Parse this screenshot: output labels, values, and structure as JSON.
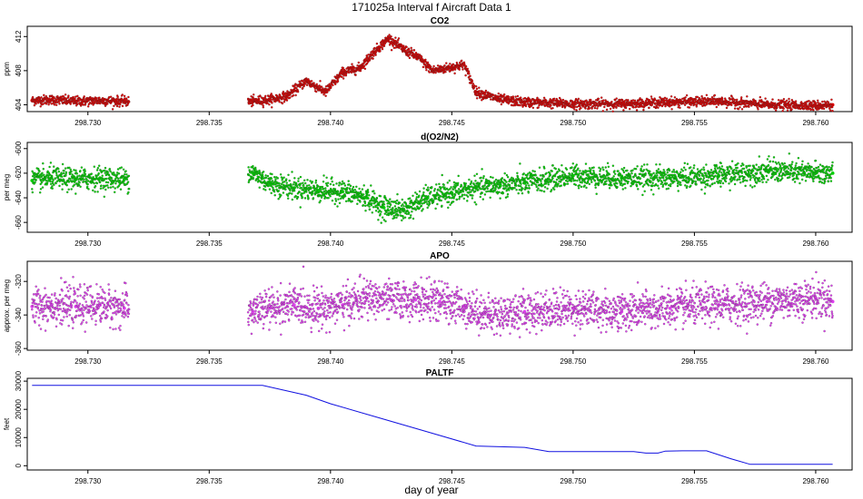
{
  "figure": {
    "title": "171025a   Interval f Aircraft Data 1",
    "xlabel": "day of year"
  },
  "colors": {
    "co2": "#e00000",
    "o2n2": "#00d000",
    "apo": "#e040f0",
    "paltf": "#1010e0",
    "axis": "#000000"
  },
  "chart_data": [
    {
      "type": "scatter",
      "title": "CO2",
      "ylabel": "ppm",
      "xlim": [
        298.7275,
        298.7615
      ],
      "ylim": [
        403.2,
        413.2
      ],
      "xticks": [
        298.73,
        298.735,
        298.74,
        298.745,
        298.75,
        298.755,
        298.76
      ],
      "xtick_labels": [
        "298.730",
        "298.735",
        "298.740",
        "298.745",
        "298.750",
        "298.755",
        "298.760"
      ],
      "yticks": [
        404,
        408,
        412
      ],
      "ytick_labels": [
        "404",
        "408",
        "412"
      ],
      "series": [
        {
          "color": "co2",
          "x": [
            298.7277,
            298.7285,
            298.7295,
            298.7305,
            298.7315,
            298.7368,
            298.7375,
            298.7382,
            298.739,
            298.7398,
            298.7405,
            298.7412,
            298.7418,
            298.7424,
            298.743,
            298.7436,
            298.7442,
            298.745,
            298.7455,
            298.746,
            298.747,
            298.748,
            298.75,
            298.752,
            298.754,
            298.756,
            298.758,
            298.76,
            298.7607
          ],
          "y": [
            404.5,
            404.6,
            404.4,
            404.5,
            404.4,
            404.4,
            404.6,
            405.0,
            406.8,
            405.5,
            407.8,
            408.3,
            410.2,
            411.8,
            410.5,
            409.6,
            408.0,
            408.4,
            408.7,
            405.5,
            404.6,
            404.3,
            404.1,
            404.1,
            404.3,
            404.4,
            404.0,
            403.9,
            404.0
          ]
        }
      ]
    },
    {
      "type": "scatter",
      "title": "d(O2/N2)",
      "ylabel": "per meg",
      "xlim": [
        298.7275,
        298.7615
      ],
      "ylim": [
        -668,
        -595
      ],
      "xticks": [
        298.73,
        298.735,
        298.74,
        298.745,
        298.75,
        298.755,
        298.76
      ],
      "xtick_labels": [
        "298.730",
        "298.735",
        "298.740",
        "298.745",
        "298.750",
        "298.755",
        "298.760"
      ],
      "yticks": [
        -600,
        -620,
        -640,
        -660
      ],
      "ytick_labels": [
        "-600",
        "-620",
        "-640",
        "-660"
      ],
      "series": [
        {
          "color": "o2n2",
          "x": [
            298.7277,
            298.7285,
            298.7295,
            298.7305,
            298.7315,
            298.7368,
            298.7375,
            298.7385,
            298.7395,
            298.7405,
            298.7415,
            298.7422,
            298.743,
            298.744,
            298.745,
            298.746,
            298.747,
            298.748,
            298.75,
            298.752,
            298.754,
            298.756,
            298.758,
            298.76,
            298.7607
          ],
          "y": [
            -626,
            -624,
            -625,
            -624,
            -625,
            -620,
            -628,
            -632,
            -634,
            -635,
            -640,
            -648,
            -650,
            -640,
            -636,
            -632,
            -630,
            -628,
            -622,
            -624,
            -624,
            -622,
            -618,
            -620,
            -620
          ]
        }
      ]
    },
    {
      "type": "scatter",
      "title": "APO",
      "ylabel": "approx. per meg",
      "xlim": [
        298.7275,
        298.7615
      ],
      "ylim": [
        -361,
        -308
      ],
      "xticks": [
        298.73,
        298.735,
        298.74,
        298.745,
        298.75,
        298.755,
        298.76
      ],
      "xtick_labels": [
        "298.730",
        "298.735",
        "298.740",
        "298.745",
        "298.750",
        "298.755",
        "298.760"
      ],
      "yticks": [
        -320,
        -340,
        -360
      ],
      "ytick_labels": [
        "-320",
        "-340",
        "-360"
      ],
      "series": [
        {
          "color": "apo",
          "x": [
            298.7277,
            298.7285,
            298.7295,
            298.7305,
            298.7315,
            298.7368,
            298.7375,
            298.7385,
            298.7395,
            298.7405,
            298.7415,
            298.7425,
            298.7435,
            298.7445,
            298.7455,
            298.7465,
            298.748,
            298.75,
            298.752,
            298.754,
            298.756,
            298.758,
            298.76,
            298.7607
          ],
          "y": [
            -335,
            -334,
            -335,
            -334,
            -336,
            -338,
            -336,
            -334,
            -336,
            -334,
            -330,
            -331,
            -331,
            -332,
            -335,
            -340,
            -338,
            -336,
            -338,
            -336,
            -334,
            -332,
            -330,
            -332
          ]
        }
      ]
    },
    {
      "type": "line",
      "title": "PALTF",
      "ylabel": "feet",
      "xlim": [
        298.7275,
        298.7615
      ],
      "ylim": [
        -1500,
        31000
      ],
      "xticks": [
        298.73,
        298.735,
        298.74,
        298.745,
        298.75,
        298.755,
        298.76
      ],
      "xtick_labels": [
        "298.730",
        "298.735",
        "298.740",
        "298.745",
        "298.750",
        "298.755",
        "298.760"
      ],
      "yticks": [
        0,
        10000,
        20000,
        30000
      ],
      "ytick_labels": [
        "0",
        "10000",
        "20000",
        "30000"
      ],
      "series": [
        {
          "color": "paltf",
          "x": [
            298.7277,
            298.7305,
            298.733,
            298.7352,
            298.7372,
            298.739,
            298.74,
            298.742,
            298.744,
            298.746,
            298.748,
            298.749,
            298.7505,
            298.7525,
            298.753,
            298.7535,
            298.7538,
            298.7545,
            298.7555,
            298.7565,
            298.7573,
            298.759,
            298.7607
          ],
          "y": [
            28500,
            28500,
            28500,
            28500,
            28500,
            25000,
            22000,
            17000,
            12000,
            7000,
            6500,
            5000,
            5000,
            5000,
            4500,
            4500,
            5200,
            5300,
            5300,
            2500,
            500,
            500,
            500
          ]
        }
      ]
    }
  ]
}
